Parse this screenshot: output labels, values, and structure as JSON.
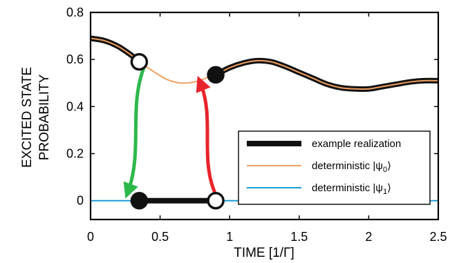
{
  "chart_data": {
    "type": "line",
    "xlabel": "TIME  [1/Γ]",
    "ylabel_lines": [
      "EXCITED STATE",
      "PROBABILITY"
    ],
    "xlim": [
      0,
      2.5
    ],
    "ylim": [
      -0.08,
      0.8
    ],
    "xticks": [
      "0",
      "0.5",
      "1",
      "1.5",
      "2",
      "2.5"
    ],
    "xtick_values": [
      0,
      0.5,
      1,
      1.5,
      2,
      2.5
    ],
    "yticks": [
      "0",
      "0.2",
      "0.4",
      "0.6",
      "0.8"
    ],
    "ytick_values": [
      0,
      0.2,
      0.4,
      0.6,
      0.8
    ],
    "grid": false,
    "legend_position": "bottom-right",
    "legend": [
      {
        "label": "example realization",
        "color": "#111111"
      },
      {
        "label": "deterministic |ψ",
        "sub": "0",
        "tail": "⟩",
        "color": "#f0a060"
      },
      {
        "label": "deterministic |ψ",
        "sub": "1",
        "tail": "⟩",
        "color": "#1a9ad6"
      }
    ],
    "series": [
      {
        "key": "psi0",
        "color": "#f0a060",
        "x": [
          0,
          0.1,
          0.2,
          0.3,
          0.35,
          0.45,
          0.55,
          0.65,
          0.75,
          0.85,
          0.9,
          1.0,
          1.1,
          1.2,
          1.3,
          1.4,
          1.5,
          1.6,
          1.7,
          1.8,
          1.9,
          2.0,
          2.1,
          2.2,
          2.3,
          2.4,
          2.5
        ],
        "y": [
          0.69,
          0.68,
          0.655,
          0.615,
          0.59,
          0.55,
          0.515,
          0.5,
          0.505,
          0.525,
          0.535,
          0.565,
          0.585,
          0.595,
          0.59,
          0.57,
          0.545,
          0.52,
          0.495,
          0.48,
          0.475,
          0.475,
          0.485,
          0.495,
          0.505,
          0.51,
          0.51
        ]
      },
      {
        "key": "psi1",
        "color": "#1a9ad6",
        "x": [
          0,
          2.5
        ],
        "y": [
          0,
          0
        ]
      }
    ],
    "realization": [
      {
        "x": [
          0,
          0.1,
          0.2,
          0.3,
          0.35
        ],
        "y": [
          0.69,
          0.68,
          0.655,
          0.615,
          0.59
        ]
      },
      {
        "x": [
          0.35,
          0.9
        ],
        "y": [
          0,
          0
        ]
      },
      {
        "x": [
          0.9,
          1.0,
          1.1,
          1.2,
          1.3,
          1.4,
          1.5,
          1.6,
          1.7,
          1.8,
          1.9,
          2.0,
          2.1,
          2.2,
          2.3,
          2.4,
          2.5
        ],
        "y": [
          0.535,
          0.565,
          0.585,
          0.595,
          0.59,
          0.57,
          0.545,
          0.52,
          0.495,
          0.48,
          0.475,
          0.475,
          0.485,
          0.495,
          0.505,
          0.51,
          0.51
        ]
      }
    ],
    "markers": [
      {
        "x": 0.35,
        "y": 0.59,
        "fill": "open"
      },
      {
        "x": 0.35,
        "y": 0,
        "fill": "filled"
      },
      {
        "x": 0.9,
        "y": 0,
        "fill": "open"
      },
      {
        "x": 0.9,
        "y": 0.535,
        "fill": "filled"
      }
    ],
    "jumps": [
      {
        "from": [
          0.38,
          0.56
        ],
        "to": [
          0.27,
          0.04
        ],
        "color": "#2db84a"
      },
      {
        "from": [
          0.89,
          0.04
        ],
        "to": [
          0.79,
          0.5
        ],
        "color": "#e8242c"
      }
    ]
  }
}
